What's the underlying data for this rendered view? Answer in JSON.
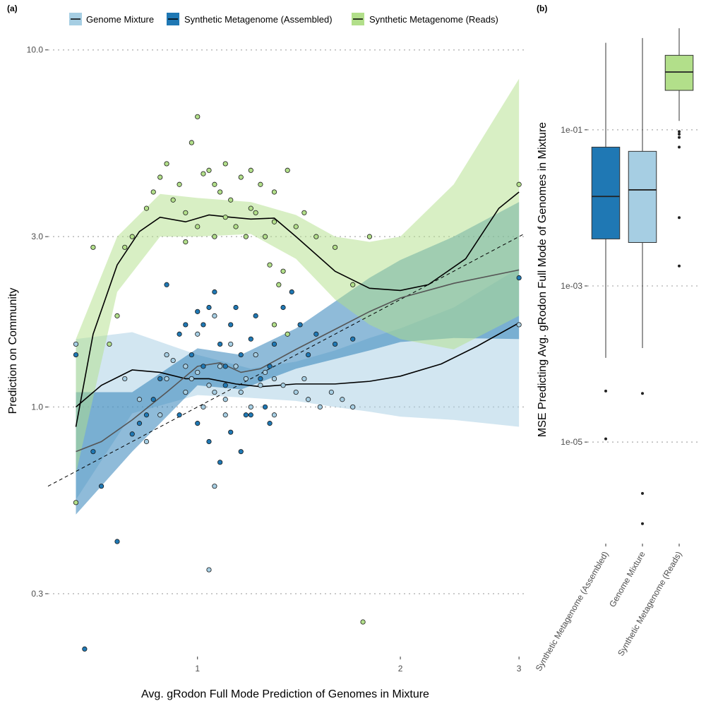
{
  "chart_data": [
    {
      "panel_label": "(a)",
      "type": "scatter",
      "xlabel": "Avg. gRodon Full Mode Prediction of Genomes in Mixture",
      "ylabel": "Prediction on Community",
      "x_scale": "log",
      "y_scale": "log",
      "xlim": [
        0.6,
        3.05
      ],
      "ylim": [
        0.2,
        11.5
      ],
      "x_ticks": [
        {
          "value": 1,
          "label": "1"
        },
        {
          "value": 2,
          "label": "2"
        },
        {
          "value": 3,
          "label": "3"
        }
      ],
      "y_ticks": [
        {
          "value": 0.3,
          "label": "0.3"
        },
        {
          "value": 1.0,
          "label": "1.0"
        },
        {
          "value": 3.0,
          "label": "3.0"
        },
        {
          "value": 10.0,
          "label": "10.0"
        }
      ],
      "grid": "major horizontal dotted",
      "legend_position": "top",
      "identity_line": true,
      "series": [
        {
          "name": "Genome Mixture",
          "color": "#a6cee3",
          "points": [
            [
              0.66,
              1.5
            ],
            [
              0.9,
              1.4
            ],
            [
              0.9,
              1.2
            ],
            [
              0.92,
              1.35
            ],
            [
              0.96,
              1.3
            ],
            [
              1.0,
              1.25
            ],
            [
              1.04,
              1.15
            ],
            [
              1.06,
              1.1
            ],
            [
              1.1,
              1.05
            ],
            [
              1.14,
              1.3
            ],
            [
              1.18,
              1.2
            ],
            [
              1.22,
              1.4
            ],
            [
              1.26,
              1.25
            ],
            [
              1.3,
              1.2
            ],
            [
              1.34,
              1.15
            ],
            [
              1.4,
              1.1
            ],
            [
              1.46,
              1.05
            ],
            [
              1.52,
              1.0
            ],
            [
              1.58,
              1.1
            ],
            [
              1.64,
              1.05
            ],
            [
              1.7,
              1.0
            ],
            [
              1.06,
              1.8
            ],
            [
              1.0,
              1.6
            ],
            [
              1.12,
              1.5
            ],
            [
              0.96,
              1.1
            ],
            [
              1.02,
              1.0
            ],
            [
              0.84,
              0.8
            ],
            [
              0.88,
              0.95
            ],
            [
              1.1,
              0.95
            ],
            [
              1.2,
              1.0
            ],
            [
              1.3,
              0.95
            ],
            [
              1.06,
              0.6
            ],
            [
              1.04,
              0.35
            ],
            [
              0.98,
              1.2
            ],
            [
              1.08,
              1.3
            ],
            [
              1.16,
              1.1
            ],
            [
              1.24,
              1.15
            ],
            [
              0.78,
              1.2
            ],
            [
              0.82,
              1.05
            ],
            [
              1.44,
              1.2
            ],
            [
              3.0,
              1.7
            ]
          ],
          "fit": [
            [
              0.66,
              1.0
            ],
            [
              0.72,
              1.15
            ],
            [
              0.8,
              1.27
            ],
            [
              0.88,
              1.25
            ],
            [
              0.96,
              1.2
            ],
            [
              1.04,
              1.2
            ],
            [
              1.14,
              1.16
            ],
            [
              1.24,
              1.14
            ],
            [
              1.4,
              1.16
            ],
            [
              1.6,
              1.16
            ],
            [
              1.8,
              1.18
            ],
            [
              2.0,
              1.22
            ],
            [
              2.3,
              1.32
            ],
            [
              2.6,
              1.48
            ],
            [
              3.0,
              1.72
            ]
          ],
          "band": [
            [
              0.66,
              0.55,
              1.55
            ],
            [
              0.8,
              0.96,
              1.62
            ],
            [
              1.0,
              1.08,
              1.4
            ],
            [
              1.2,
              1.06,
              1.28
            ],
            [
              1.4,
              1.04,
              1.34
            ],
            [
              1.6,
              1.0,
              1.44
            ],
            [
              1.8,
              0.97,
              1.56
            ],
            [
              2.0,
              0.94,
              1.66
            ],
            [
              2.4,
              0.92,
              1.9
            ],
            [
              3.0,
              0.88,
              2.45
            ]
          ]
        },
        {
          "name": "Synthetic Metagenome (Assembled)",
          "color": "#1f78b4",
          "points": [
            [
              0.66,
              1.4
            ],
            [
              0.7,
              0.75
            ],
            [
              0.72,
              0.6
            ],
            [
              0.76,
              0.42
            ],
            [
              0.8,
              0.84
            ],
            [
              0.82,
              0.9
            ],
            [
              0.84,
              0.95
            ],
            [
              0.86,
              1.05
            ],
            [
              0.88,
              1.2
            ],
            [
              0.9,
              2.2
            ],
            [
              0.94,
              1.6
            ],
            [
              0.96,
              1.7
            ],
            [
              0.98,
              1.4
            ],
            [
              1.0,
              1.85
            ],
            [
              1.02,
              1.7
            ],
            [
              1.04,
              1.9
            ],
            [
              1.06,
              2.1
            ],
            [
              1.08,
              1.5
            ],
            [
              1.1,
              1.3
            ],
            [
              1.12,
              1.7
            ],
            [
              1.14,
              1.9
            ],
            [
              1.16,
              1.4
            ],
            [
              1.18,
              0.95
            ],
            [
              1.2,
              1.55
            ],
            [
              1.22,
              1.8
            ],
            [
              1.24,
              1.2
            ],
            [
              1.26,
              1.0
            ],
            [
              1.28,
              0.9
            ],
            [
              1.3,
              1.5
            ],
            [
              1.34,
              1.9
            ],
            [
              1.38,
              2.1
            ],
            [
              1.42,
              1.7
            ],
            [
              1.46,
              1.4
            ],
            [
              1.5,
              1.6
            ],
            [
              1.6,
              1.5
            ],
            [
              1.7,
              1.55
            ],
            [
              1.0,
              0.9
            ],
            [
              1.04,
              0.8
            ],
            [
              1.08,
              0.7
            ],
            [
              1.12,
              0.85
            ],
            [
              1.16,
              0.75
            ],
            [
              1.2,
              0.95
            ],
            [
              3.0,
              2.3
            ],
            [
              0.94,
              0.95
            ],
            [
              1.02,
              1.3
            ],
            [
              1.1,
              1.15
            ],
            [
              1.28,
              1.3
            ],
            [
              0.68,
              0.21
            ]
          ],
          "fit": [
            [
              0.66,
              0.75
            ],
            [
              0.72,
              0.8
            ],
            [
              0.8,
              0.92
            ],
            [
              0.9,
              1.1
            ],
            [
              1.0,
              1.3
            ],
            [
              1.08,
              1.33
            ],
            [
              1.16,
              1.25
            ],
            [
              1.24,
              1.28
            ],
            [
              1.4,
              1.45
            ],
            [
              1.6,
              1.65
            ],
            [
              1.8,
              1.85
            ],
            [
              2.0,
              2.02
            ],
            [
              2.4,
              2.22
            ],
            [
              3.0,
              2.42
            ]
          ],
          "band": [
            [
              0.66,
              0.5,
              1.1
            ],
            [
              0.8,
              0.75,
              1.1
            ],
            [
              1.0,
              1.15,
              1.46
            ],
            [
              1.16,
              1.12,
              1.4
            ],
            [
              1.4,
              1.28,
              1.66
            ],
            [
              1.8,
              1.44,
              2.3
            ],
            [
              2.0,
              1.52,
              2.58
            ],
            [
              2.4,
              1.56,
              3.0
            ],
            [
              3.0,
              1.55,
              3.75
            ]
          ]
        },
        {
          "name": "Synthetic Metagenome (Reads)",
          "color": "#b2df8a",
          "points": [
            [
              0.66,
              0.54
            ],
            [
              0.7,
              2.8
            ],
            [
              0.74,
              1.5
            ],
            [
              0.76,
              1.8
            ],
            [
              0.78,
              2.8
            ],
            [
              0.8,
              3.0
            ],
            [
              0.84,
              3.6
            ],
            [
              0.86,
              4.0
            ],
            [
              0.88,
              4.4
            ],
            [
              0.9,
              4.8
            ],
            [
              0.92,
              3.8
            ],
            [
              0.94,
              4.2
            ],
            [
              0.96,
              3.5
            ],
            [
              0.98,
              5.5
            ],
            [
              1.0,
              6.5
            ],
            [
              1.02,
              4.5
            ],
            [
              1.04,
              4.6
            ],
            [
              1.06,
              4.2
            ],
            [
              1.08,
              4.0
            ],
            [
              1.1,
              4.8
            ],
            [
              1.12,
              3.8
            ],
            [
              1.14,
              3.2
            ],
            [
              1.16,
              4.4
            ],
            [
              1.18,
              3.0
            ],
            [
              1.2,
              4.6
            ],
            [
              1.22,
              3.5
            ],
            [
              1.24,
              4.2
            ],
            [
              1.26,
              3.0
            ],
            [
              1.28,
              2.5
            ],
            [
              1.3,
              4.0
            ],
            [
              1.32,
              2.2
            ],
            [
              1.34,
              2.4
            ],
            [
              1.36,
              4.6
            ],
            [
              1.4,
              3.2
            ],
            [
              1.44,
              3.5
            ],
            [
              1.5,
              3.0
            ],
            [
              1.6,
              2.8
            ],
            [
              1.7,
              2.2
            ],
            [
              1.8,
              3.0
            ],
            [
              1.3,
              1.7
            ],
            [
              1.36,
              1.6
            ],
            [
              1.76,
              0.25
            ],
            [
              3.0,
              4.2
            ],
            [
              1.0,
              3.2
            ],
            [
              1.1,
              3.4
            ],
            [
              1.2,
              3.6
            ],
            [
              1.3,
              3.3
            ],
            [
              0.96,
              2.9
            ],
            [
              1.06,
              3.0
            ]
          ],
          "fit": [
            [
              0.66,
              0.88
            ],
            [
              0.7,
              1.6
            ],
            [
              0.76,
              2.5
            ],
            [
              0.82,
              3.1
            ],
            [
              0.88,
              3.4
            ],
            [
              0.96,
              3.3
            ],
            [
              1.04,
              3.45
            ],
            [
              1.12,
              3.4
            ],
            [
              1.2,
              3.36
            ],
            [
              1.3,
              3.38
            ],
            [
              1.4,
              3.0
            ],
            [
              1.6,
              2.4
            ],
            [
              1.8,
              2.15
            ],
            [
              2.0,
              2.12
            ],
            [
              2.2,
              2.2
            ],
            [
              2.5,
              2.6
            ],
            [
              2.8,
              3.6
            ],
            [
              3.0,
              4.0
            ]
          ],
          "band": [
            [
              0.66,
              0.65,
              1.55
            ],
            [
              0.76,
              2.1,
              3.0
            ],
            [
              0.88,
              3.0,
              3.95
            ],
            [
              1.0,
              3.0,
              3.85
            ],
            [
              1.2,
              3.05,
              3.75
            ],
            [
              1.4,
              2.6,
              3.45
            ],
            [
              1.6,
              2.0,
              3.0
            ],
            [
              1.8,
              1.7,
              2.9
            ],
            [
              2.0,
              1.55,
              3.0
            ],
            [
              2.4,
              1.45,
              4.2
            ],
            [
              3.0,
              1.8,
              8.3
            ]
          ]
        }
      ]
    },
    {
      "panel_label": "(b)",
      "type": "box",
      "ylabel": "MSE Predicting Avg. gRodon Full Mode of Genomes in Mixture",
      "y_scale": "log",
      "ylim": [
        5e-07,
        2.0
      ],
      "y_ticks": [
        {
          "value": 1e-05,
          "label": "1e-05"
        },
        {
          "value": 0.001,
          "label": "1e-03"
        },
        {
          "value": 0.1,
          "label": "1e-01"
        }
      ],
      "grid": "major horizontal dotted",
      "categories": [
        "Synthetic Metagenome (Assembled)",
        "Genome Mixture",
        "Synthetic Metagenome (Reads)"
      ],
      "boxes": [
        {
          "name": "Synthetic Metagenome (Assembled)",
          "color": "#1f78b4",
          "whisker_low": 0.00012,
          "q1": 0.004,
          "median": 0.014,
          "q3": 0.06,
          "whisker_high": 1.3,
          "outliers": [
            4.5e-05,
            1.1e-05
          ]
        },
        {
          "name": "Genome Mixture",
          "color": "#a6cee3",
          "whisker_low": 0.00016,
          "q1": 0.0036,
          "median": 0.017,
          "q3": 0.053,
          "whisker_high": 1.5,
          "outliers": [
            4.2e-05,
            2.2e-06,
            9e-07
          ]
        },
        {
          "name": "Synthetic Metagenome (Reads)",
          "color": "#b2df8a",
          "whisker_low": 0.13,
          "q1": 0.32,
          "median": 0.55,
          "q3": 0.9,
          "whisker_high": 2.0,
          "outliers": [
            0.095,
            0.088,
            0.08,
            0.06,
            0.0075,
            0.0018
          ]
        }
      ]
    }
  ]
}
